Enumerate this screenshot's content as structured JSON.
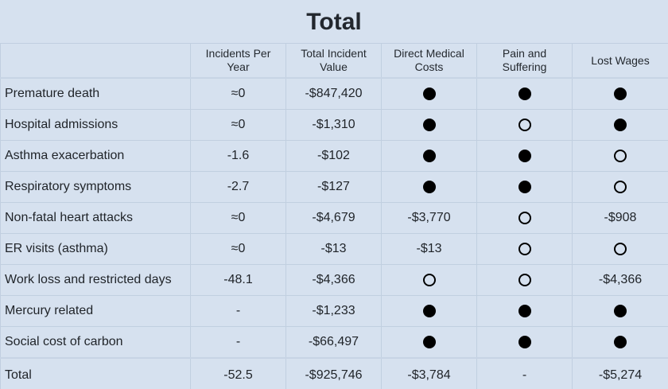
{
  "title": "Total",
  "columns": [
    "",
    "Incidents Per Year",
    "Total Incident Value",
    "Direct Medical Costs",
    "Pain and Suffering",
    "Lost Wages"
  ],
  "rows": [
    {
      "label": "Premature death",
      "incidents": "≈0",
      "value": "-$847,420",
      "direct": "filled-dot-icon",
      "pain": "filled-dot-icon",
      "wages": "filled-dot-icon"
    },
    {
      "label": "Hospital admissions",
      "incidents": "≈0",
      "value": "-$1,310",
      "direct": "filled-dot-icon",
      "pain": "empty-dot-icon",
      "wages": "filled-dot-icon"
    },
    {
      "label": "Asthma exacerbation",
      "incidents": "-1.6",
      "value": "-$102",
      "direct": "filled-dot-icon",
      "pain": "filled-dot-icon",
      "wages": "empty-dot-icon"
    },
    {
      "label": "Respiratory symptoms",
      "incidents": "-2.7",
      "value": "-$127",
      "direct": "filled-dot-icon",
      "pain": "filled-dot-icon",
      "wages": "empty-dot-icon"
    },
    {
      "label": "Non-fatal heart attacks",
      "incidents": "≈0",
      "value": "-$4,679",
      "direct": "-$3,770",
      "pain": "empty-dot-icon",
      "wages": "-$908"
    },
    {
      "label": "ER visits (asthma)",
      "incidents": "≈0",
      "value": "-$13",
      "direct": "-$13",
      "pain": "empty-dot-icon",
      "wages": "empty-dot-icon"
    },
    {
      "label": "Work loss and restricted days",
      "incidents": "-48.1",
      "value": "-$4,366",
      "direct": "empty-dot-icon",
      "pain": "empty-dot-icon",
      "wages": "-$4,366"
    },
    {
      "label": "Mercury related",
      "incidents": "-",
      "value": "-$1,233",
      "direct": "filled-dot-icon",
      "pain": "filled-dot-icon",
      "wages": "filled-dot-icon"
    },
    {
      "label": "Social cost of carbon",
      "incidents": "-",
      "value": "-$66,497",
      "direct": "filled-dot-icon",
      "pain": "filled-dot-icon",
      "wages": "filled-dot-icon"
    }
  ],
  "total": {
    "label": "Total",
    "incidents": "-52.5",
    "value": "-$925,746",
    "direct": "-$3,784",
    "pain": "-",
    "wages": "-$5,274"
  },
  "colors": {
    "background": "#d6e1ef",
    "border": "#c1cfe0",
    "dot": "#000000"
  }
}
